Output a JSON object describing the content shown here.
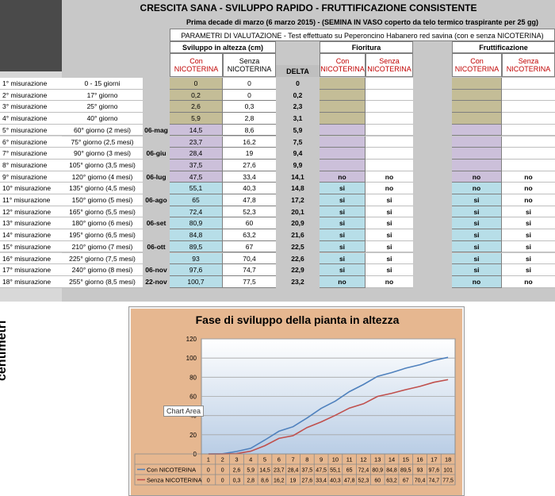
{
  "sheet": {
    "title": "CRESCITA SANA  -  SVILUPPO RAPIDO  -  FRUTTIFICAZIONE CONSISTENTE",
    "info1": "Prima decade di marzo (6 marzo 2015) - (SEMINA IN VASO coperto da telo termico traspirante per 25 gg)",
    "info2": "PARAMETRI DI VALUTAZIONE - Test effettuato su Peperoncino Habanero red savina (con e senza NICOTERINA)",
    "sviluppo_label": "Sviluppo in altezza (cm)",
    "fioritura_label": "Fioritura",
    "fruttificazione_label": "Fruttificazione",
    "con_label": "Con",
    "senza_label": "Senza",
    "nicoterina_label": "NICOTERINA",
    "delta_label": "DELTA",
    "colors": {
      "olive": "#c4bd97",
      "lavender": "#ccc0da",
      "cyan": "#b7dee8",
      "gray": "#c8c8c8"
    },
    "rows": [
      {
        "label": "1° misurazione",
        "period": "0 - 15 giorni",
        "date": "",
        "con": "0",
        "senza": "0",
        "delta": "0",
        "fc": "",
        "fs": "",
        "rc": "",
        "rs": "",
        "color": "olive"
      },
      {
        "label": "2° misurazione",
        "period": "17° giorno",
        "date": "",
        "con": "0,2",
        "senza": "0",
        "delta": "0,2",
        "fc": "",
        "fs": "",
        "rc": "",
        "rs": "",
        "color": "olive"
      },
      {
        "label": "3° misurazione",
        "period": "25° giorno",
        "date": "",
        "con": "2,6",
        "senza": "0,3",
        "delta": "2,3",
        "fc": "",
        "fs": "",
        "rc": "",
        "rs": "",
        "color": "olive"
      },
      {
        "label": "4° misurazione",
        "period": "40° giorno",
        "date": "",
        "con": "5,9",
        "senza": "2,8",
        "delta": "3,1",
        "fc": "",
        "fs": "",
        "rc": "",
        "rs": "",
        "color": "olive"
      },
      {
        "label": "5° misurazione",
        "period": "60° giorno (2 mesi)",
        "date": "06-mag",
        "con": "14,5",
        "senza": "8,6",
        "delta": "5,9",
        "fc": "",
        "fs": "",
        "rc": "",
        "rs": "",
        "color": "lavender"
      },
      {
        "label": "6° misurazione",
        "period": "75° giorno (2,5 mesi)",
        "date": "",
        "con": "23,7",
        "senza": "16,2",
        "delta": "7,5",
        "fc": "",
        "fs": "",
        "rc": "",
        "rs": "",
        "color": "lavender"
      },
      {
        "label": "7° misurazione",
        "period": "90° giorno (3 mesi)",
        "date": "06-giu",
        "con": "28,4",
        "senza": "19",
        "delta": "9,4",
        "fc": "",
        "fs": "",
        "rc": "",
        "rs": "",
        "color": "lavender"
      },
      {
        "label": "8° misurazione",
        "period": "105° giorno (3,5 mesi)",
        "date": "",
        "con": "37,5",
        "senza": "27,6",
        "delta": "9,9",
        "fc": "",
        "fs": "",
        "rc": "",
        "rs": "",
        "color": "lavender"
      },
      {
        "label": "9° misurazione",
        "period": "120° giorno (4 mesi)",
        "date": "06-lug",
        "con": "47,5",
        "senza": "33,4",
        "delta": "14,1",
        "fc": "no",
        "fs": "no",
        "rc": "no",
        "rs": "no",
        "color": "lavender"
      },
      {
        "label": "10° misurazione",
        "period": "135° giorno (4,5 mesi)",
        "date": "",
        "con": "55,1",
        "senza": "40,3",
        "delta": "14,8",
        "fc": "si",
        "fs": "no",
        "rc": "no",
        "rs": "no",
        "color": "cyan"
      },
      {
        "label": "11° misurazione",
        "period": "150° giorno (5 mesi)",
        "date": "06-ago",
        "con": "65",
        "senza": "47,8",
        "delta": "17,2",
        "fc": "si",
        "fs": "si",
        "rc": "si",
        "rs": "no",
        "color": "cyan"
      },
      {
        "label": "12° misurazione",
        "period": "165° giorno (5,5 mesi)",
        "date": "",
        "con": "72,4",
        "senza": "52,3",
        "delta": "20,1",
        "fc": "si",
        "fs": "si",
        "rc": "si",
        "rs": "si",
        "color": "cyan"
      },
      {
        "label": "13° misurazione",
        "period": "180° giorno (6 mesi)",
        "date": "06-set",
        "con": "80,9",
        "senza": "60",
        "delta": "20,9",
        "fc": "si",
        "fs": "si",
        "rc": "si",
        "rs": "si",
        "color": "cyan"
      },
      {
        "label": "14° misurazione",
        "period": "195° giorno (6,5 mesi)",
        "date": "",
        "con": "84,8",
        "senza": "63,2",
        "delta": "21,6",
        "fc": "si",
        "fs": "si",
        "rc": "si",
        "rs": "si",
        "color": "cyan"
      },
      {
        "label": "15° misurazione",
        "period": "210° giorno (7 mesi)",
        "date": "06-ott",
        "con": "89,5",
        "senza": "67",
        "delta": "22,5",
        "fc": "si",
        "fs": "si",
        "rc": "si",
        "rs": "si",
        "color": "cyan"
      },
      {
        "label": "16° misurazione",
        "period": "225° giorno (7,5 mesi)",
        "date": "",
        "con": "93",
        "senza": "70,4",
        "delta": "22,6",
        "fc": "si",
        "fs": "si",
        "rc": "si",
        "rs": "si",
        "color": "cyan"
      },
      {
        "label": "17° misurazione",
        "period": "240° giorno (8 mesi)",
        "date": "06-nov",
        "con": "97,6",
        "senza": "74,7",
        "delta": "22,9",
        "fc": "si",
        "fs": "si",
        "rc": "si",
        "rs": "si",
        "color": "cyan"
      },
      {
        "label": "18° misurazione",
        "period": "255° giorno (8,5 mesi)",
        "date": "22-nov",
        "con": "100,7",
        "senza": "77,5",
        "delta": "23,2",
        "fc": "no",
        "fs": "no",
        "rc": "no",
        "rs": "no",
        "color": "cyan"
      }
    ]
  },
  "chart_tooltip": "Chart Area",
  "chart_data": {
    "type": "line",
    "title": "Fase di sviluppo della pianta in altezza",
    "xlabel": "",
    "ylabel": "centimetri",
    "categories": [
      "1",
      "2",
      "3",
      "4",
      "5",
      "6",
      "7",
      "8",
      "9",
      "10",
      "11",
      "12",
      "13",
      "14",
      "15",
      "16",
      "17",
      "18"
    ],
    "ylim": [
      0,
      120
    ],
    "yticks": [
      0,
      20,
      40,
      60,
      80,
      100,
      120
    ],
    "grid": true,
    "legend": "data-table",
    "series": [
      {
        "name": "Con NICOTERINA",
        "color": "#4f81bd",
        "values": [
          0,
          0.2,
          2.6,
          5.9,
          14.5,
          23.7,
          28.4,
          37.5,
          47.5,
          55.1,
          65,
          72.4,
          80.9,
          84.8,
          89.5,
          93,
          97.6,
          100.7
        ],
        "labels": [
          "0",
          "0",
          "2,6",
          "5,9",
          "14,5",
          "23,7",
          "28,4",
          "37,5",
          "47,5",
          "55,1",
          "65",
          "72,4",
          "80,9",
          "84,8",
          "89,5",
          "93",
          "97,6",
          "101"
        ]
      },
      {
        "name": "Senza NICOTERINA",
        "color": "#c0504d",
        "values": [
          0,
          0,
          0.3,
          2.8,
          8.6,
          16.2,
          19,
          27.6,
          33.4,
          40.3,
          47.8,
          52.3,
          60,
          63.2,
          67,
          70.4,
          74.7,
          77.5
        ],
        "labels": [
          "0",
          "0",
          "0,3",
          "2,8",
          "8,6",
          "16,2",
          "19",
          "27,6",
          "33,4",
          "40,3",
          "47,8",
          "52,3",
          "60",
          "63,2",
          "67",
          "70,4",
          "74,7",
          "77,5"
        ]
      }
    ]
  }
}
